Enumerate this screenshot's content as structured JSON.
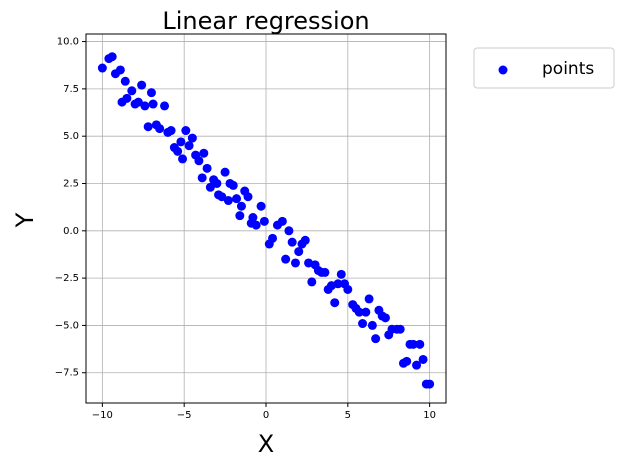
{
  "chart_data": {
    "type": "scatter",
    "title": "Linear regression",
    "x_label": "X",
    "y_label": "Y",
    "series": [
      {
        "name": "points",
        "color": "#0000ff",
        "x": [
          -10.0,
          -9.6,
          -9.4,
          -9.2,
          -8.9,
          -8.8,
          -8.6,
          -8.5,
          -8.2,
          -8.0,
          -7.8,
          -7.6,
          -7.4,
          -7.2,
          -7.0,
          -6.9,
          -6.7,
          -6.5,
          -6.2,
          -6.0,
          -5.8,
          -5.6,
          -5.4,
          -5.2,
          -5.1,
          -4.9,
          -4.7,
          -4.5,
          -4.3,
          -4.1,
          -3.9,
          -3.8,
          -3.6,
          -3.4,
          -3.2,
          -3.0,
          -2.9,
          -2.7,
          -2.5,
          -2.3,
          -2.2,
          -2.0,
          -1.8,
          -1.6,
          -1.5,
          -1.3,
          -1.1,
          -0.9,
          -0.8,
          -0.6,
          -0.3,
          -0.1,
          0.2,
          0.4,
          0.7,
          1.0,
          1.2,
          1.4,
          1.6,
          1.8,
          2.0,
          2.2,
          2.4,
          2.6,
          2.8,
          3.0,
          3.2,
          3.4,
          3.6,
          3.8,
          4.0,
          4.2,
          4.4,
          4.6,
          4.8,
          5.0,
          5.3,
          5.5,
          5.7,
          5.9,
          6.1,
          6.3,
          6.5,
          6.7,
          6.9,
          7.1,
          7.3,
          7.5,
          7.7,
          8.0,
          8.2,
          8.4,
          8.6,
          8.8,
          9.0,
          9.2,
          9.4,
          9.6,
          9.8,
          10.0
        ],
        "y": [
          8.6,
          9.1,
          9.2,
          8.3,
          8.5,
          6.8,
          7.9,
          7.0,
          7.4,
          6.7,
          6.8,
          7.7,
          6.6,
          5.5,
          7.3,
          6.7,
          5.6,
          5.4,
          6.6,
          5.2,
          5.3,
          4.4,
          4.2,
          4.7,
          3.8,
          5.3,
          4.5,
          4.9,
          4.0,
          3.7,
          2.8,
          4.1,
          3.3,
          2.3,
          2.7,
          2.5,
          1.9,
          1.8,
          3.1,
          1.6,
          2.5,
          2.4,
          1.7,
          0.8,
          1.3,
          2.1,
          1.8,
          0.4,
          0.7,
          0.3,
          1.3,
          0.5,
          -0.7,
          -0.4,
          0.3,
          0.5,
          -1.5,
          0.0,
          -0.6,
          -1.7,
          -1.1,
          -0.7,
          -0.5,
          -1.7,
          -2.7,
          -1.8,
          -2.1,
          -2.2,
          -2.2,
          -3.1,
          -2.9,
          -3.8,
          -2.8,
          -2.3,
          -2.8,
          -3.1,
          -3.9,
          -4.1,
          -4.3,
          -4.9,
          -4.3,
          -3.6,
          -5.0,
          -5.7,
          -4.2,
          -4.5,
          -4.6,
          -5.5,
          -5.2,
          -5.2,
          -5.2,
          -7.0,
          -6.9,
          -6.0,
          -6.0,
          -7.1,
          -6.0,
          -6.8,
          -8.1,
          -8.1
        ]
      }
    ],
    "xlim": [
      -11,
      11
    ],
    "xticks": [
      {
        "value": -10,
        "label": "−10"
      },
      {
        "value": -5,
        "label": "−5"
      },
      0,
      5,
      10
    ],
    "ylim": [
      -9.1,
      10.4
    ],
    "yticks": [
      {
        "value": -7.5,
        "label": "−7.5"
      },
      {
        "value": -5,
        "label": "−5.0"
      },
      {
        "value": -2.5,
        "label": "−2.5"
      },
      {
        "value": 0,
        "label": "0.0"
      },
      {
        "value": 2.5,
        "label": "2.5"
      },
      {
        "value": 5,
        "label": "5.0"
      },
      {
        "value": 7.5,
        "label": "7.5"
      },
      {
        "value": 10,
        "label": "10.0"
      }
    ],
    "grid": true,
    "legend": "outside-upper-right"
  }
}
